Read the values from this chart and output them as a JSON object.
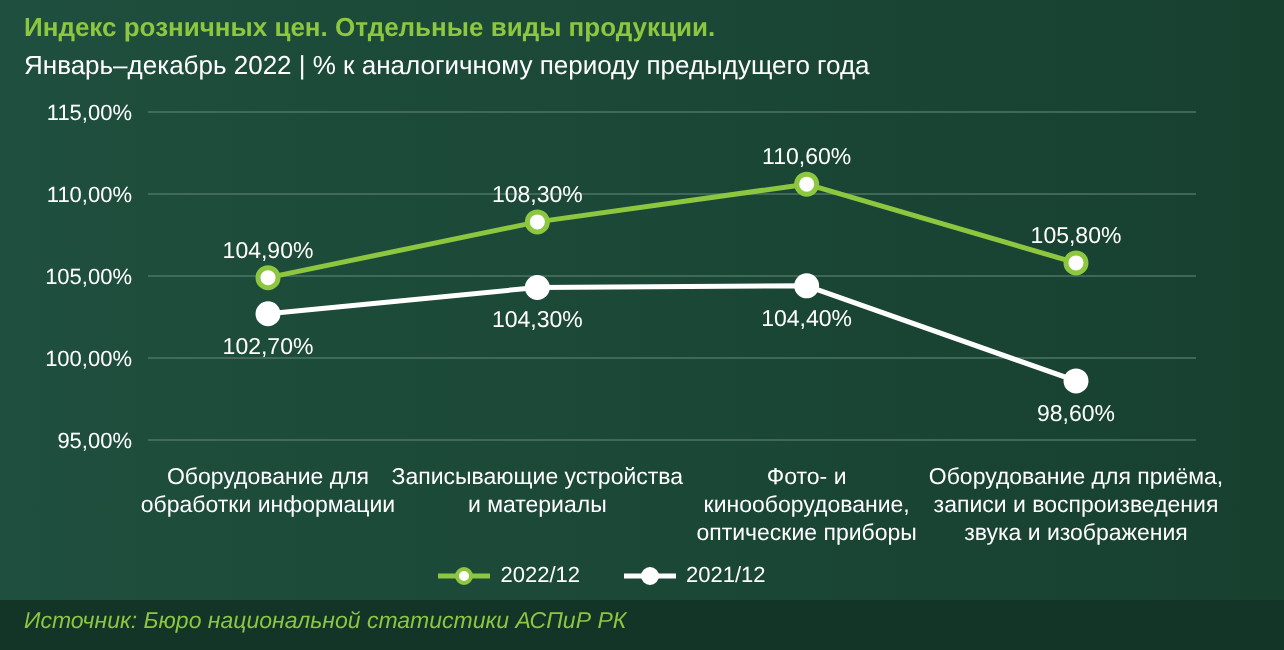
{
  "chart_data": {
    "type": "line",
    "title": "Индекс розничных цен. Отдельные виды продукции.",
    "subtitle": "Январь–декабрь 2022 | % к аналогичному периоду предыдущего года",
    "categories": [
      "Оборудование для обработки информации",
      "Записывающие устройства и материалы",
      "Фото- и кинооборудование, оптические приборы",
      "Оборудование для приёма, записи и воспроизведения звука и изображения"
    ],
    "series": [
      {
        "name": "2022/12",
        "color": "#8dc63f",
        "values": [
          104.9,
          108.3,
          110.6,
          105.8
        ],
        "value_labels": [
          "104,90%",
          "108,30%",
          "110,60%",
          "105,80%"
        ]
      },
      {
        "name": "2021/12",
        "color": "#ffffff",
        "values": [
          102.7,
          104.3,
          104.4,
          98.6
        ],
        "value_labels": [
          "102,70%",
          "104,30%",
          "104,40%",
          "98,60%"
        ]
      }
    ],
    "ylim": [
      95,
      115
    ],
    "yticks": [
      {
        "value": 95,
        "label": "95,00%"
      },
      {
        "value": 100,
        "label": "100,00%"
      },
      {
        "value": 105,
        "label": "105,00%"
      },
      {
        "value": 110,
        "label": "110,00%"
      },
      {
        "value": 115,
        "label": "115,00%"
      }
    ],
    "grid": "y",
    "legend": "bottom",
    "marker": "circle",
    "line_style": "solid",
    "annotations": [
      "Источник: Бюро национальной статистики АСПиР РК"
    ]
  }
}
